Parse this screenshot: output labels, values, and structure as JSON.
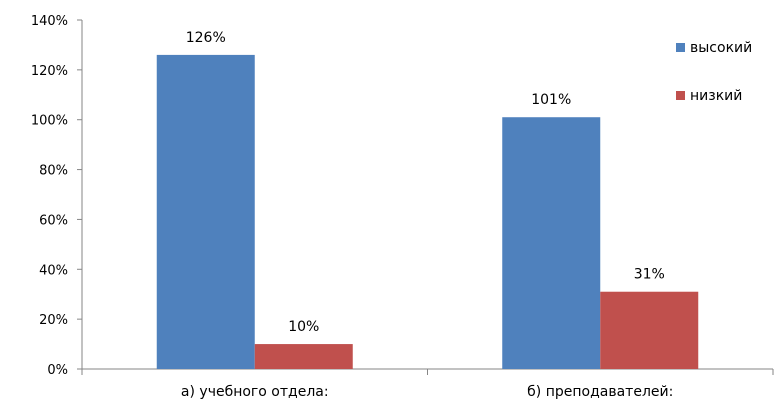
{
  "chart_data": {
    "type": "bar",
    "categories": [
      "а) учебного отдела:",
      "б) преподавателей:"
    ],
    "series": [
      {
        "name": "высокий",
        "values": [
          126,
          101
        ],
        "labels": [
          "126%",
          "101%"
        ],
        "color": "#4F81BD"
      },
      {
        "name": "низкий",
        "values": [
          10,
          31
        ],
        "labels": [
          "10%",
          "31%"
        ],
        "color": "#C0504D"
      }
    ],
    "yticks": [
      "0%",
      "20%",
      "40%",
      "60%",
      "80%",
      "100%",
      "120%",
      "140%"
    ],
    "ylim": [
      0,
      140
    ],
    "grid": false,
    "legend_position": "right"
  }
}
